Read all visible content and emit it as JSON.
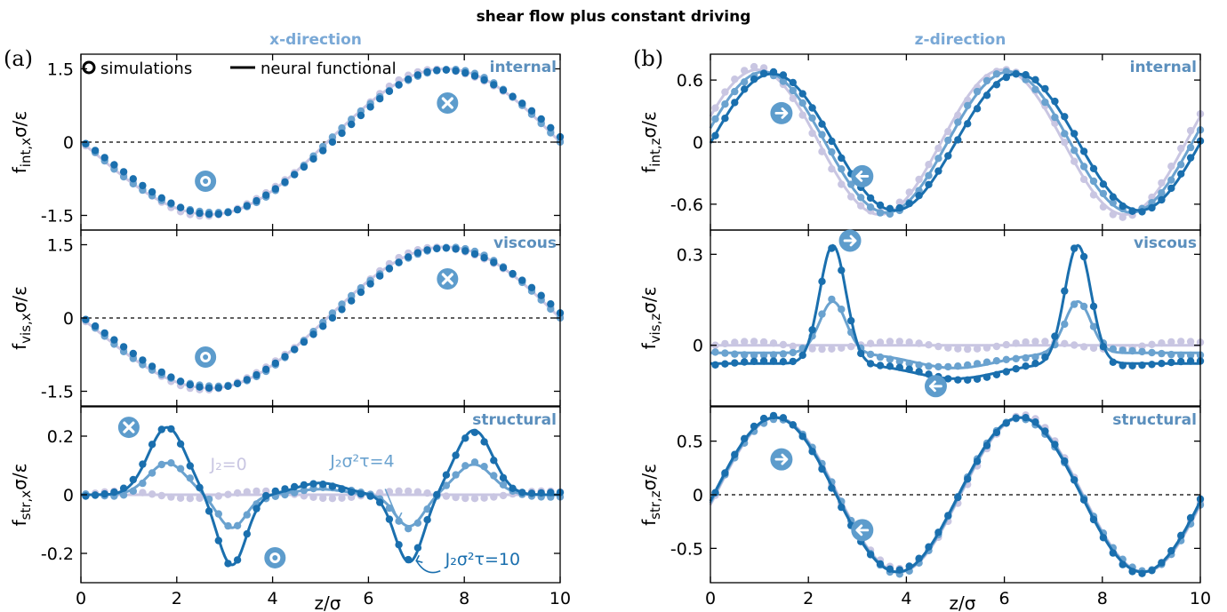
{
  "figure": {
    "title": "shear flow plus constant driving",
    "columns": [
      {
        "panel": "(a)",
        "heading": "x-direction"
      },
      {
        "panel": "(b)",
        "heading": "z-direction"
      }
    ],
    "xlabel": "z/σ",
    "legend": {
      "simulations": "simulations",
      "functional": "neural functional"
    },
    "annotations": {
      "j0": "J₂=0",
      "j4": "J₂σ²τ=4",
      "j10": "J₂σ²τ=10"
    }
  },
  "colors": {
    "j0": "#c9c6e2",
    "j4": "#6aa2cf",
    "j10": "#1a6fae",
    "icon": "#5d9ccc",
    "row_label": "#5b8fbd",
    "heading": "#79a8d6"
  },
  "chart_data": [
    {
      "id": "a1",
      "type": "line",
      "row_label": "internal",
      "ylabel": "f_int,x σ/ε",
      "ylabel_main": "f",
      "ylabel_sub": "int,x",
      "ylabel_tail": "σ/ε",
      "xlim": [
        0,
        10
      ],
      "ylim": [
        -1.8,
        1.8
      ],
      "yticks": [
        -1.5,
        0,
        1.5
      ],
      "ytick_labels": [
        "-1.5",
        "0",
        "1.5"
      ],
      "xticks": [
        0,
        2,
        4,
        6,
        8,
        10
      ],
      "xtick_labels": [],
      "zero_line": true,
      "icons": [
        {
          "kind": "out",
          "x": 2.6,
          "y": -0.8
        },
        {
          "kind": "in",
          "x": 7.65,
          "y": 0.8
        }
      ],
      "legend": true
    },
    {
      "id": "a2",
      "type": "line",
      "row_label": "viscous",
      "ylabel": "f_vis,x σ/ε",
      "ylabel_main": "f",
      "ylabel_sub": "vis,x",
      "ylabel_tail": "σ/ε",
      "xlim": [
        0,
        10
      ],
      "ylim": [
        -1.8,
        1.8
      ],
      "yticks": [
        -1.5,
        0,
        1.5
      ],
      "ytick_labels": [
        "-1.5",
        "0",
        "1.5"
      ],
      "xticks": [
        0,
        2,
        4,
        6,
        8,
        10
      ],
      "xtick_labels": [],
      "zero_line": true,
      "icons": [
        {
          "kind": "out",
          "x": 2.6,
          "y": -0.8
        },
        {
          "kind": "in",
          "x": 7.65,
          "y": 0.8
        }
      ]
    },
    {
      "id": "a3",
      "type": "line",
      "row_label": "structural",
      "ylabel": "f_str,x σ/ε",
      "ylabel_main": "f",
      "ylabel_sub": "str,x",
      "ylabel_tail": "σ/ε",
      "xlim": [
        0,
        10
      ],
      "ylim": [
        -0.3,
        0.3
      ],
      "yticks": [
        -0.2,
        0,
        0.2
      ],
      "ytick_labels": [
        "-0.2",
        "0",
        "0.2"
      ],
      "xticks": [
        0,
        2,
        4,
        6,
        8,
        10
      ],
      "xtick_labels": [
        "0",
        "2",
        "4",
        "6",
        "8",
        "10"
      ],
      "zero_line": false,
      "icons": [
        {
          "kind": "in",
          "x": 1.0,
          "y": 0.23
        },
        {
          "kind": "out",
          "x": 4.05,
          "y": -0.215
        }
      ]
    },
    {
      "id": "b1",
      "type": "line",
      "row_label": "internal",
      "ylabel": "f_int,z σ/ε",
      "ylabel_main": "f",
      "ylabel_sub": "int,z",
      "ylabel_tail": "σ/ε",
      "xlim": [
        0,
        10
      ],
      "ylim": [
        -0.85,
        0.85
      ],
      "yticks": [
        -0.6,
        0,
        0.6
      ],
      "ytick_labels": [
        "-0.6",
        "0",
        "0.6"
      ],
      "xticks": [
        0,
        2,
        4,
        6,
        8,
        10
      ],
      "xtick_labels": [],
      "zero_line": true,
      "icons": [
        {
          "kind": "right",
          "x": 1.45,
          "y": 0.28
        },
        {
          "kind": "left",
          "x": 3.1,
          "y": -0.33
        }
      ]
    },
    {
      "id": "b2",
      "type": "line",
      "row_label": "viscous",
      "ylabel": "f_vis,z σ/ε",
      "ylabel_main": "f",
      "ylabel_sub": "vis,z",
      "ylabel_tail": "σ/ε",
      "xlim": [
        0,
        10
      ],
      "ylim": [
        -0.2,
        0.38
      ],
      "yticks": [
        0,
        0.3
      ],
      "ytick_labels": [
        "0",
        "0.3"
      ],
      "xticks": [
        0,
        2,
        4,
        6,
        8,
        10
      ],
      "xtick_labels": [],
      "zero_line": false,
      "icons": [
        {
          "kind": "right",
          "x": 2.85,
          "y": 0.345
        },
        {
          "kind": "left",
          "x": 4.6,
          "y": -0.135
        }
      ]
    },
    {
      "id": "b3",
      "type": "line",
      "row_label": "structural",
      "ylabel": "f_str,z σ/ε",
      "ylabel_main": "f",
      "ylabel_sub": "str,z",
      "ylabel_tail": "σ/ε",
      "xlim": [
        0,
        10
      ],
      "ylim": [
        -0.82,
        0.82
      ],
      "yticks": [
        -0.5,
        0,
        0.5
      ],
      "ytick_labels": [
        "-0.5",
        "0",
        "0.5"
      ],
      "xticks": [
        0,
        2,
        4,
        6,
        8,
        10
      ],
      "xtick_labels": [
        "0",
        "2",
        "4",
        "6",
        "8",
        "10"
      ],
      "zero_line": true,
      "icons": [
        {
          "kind": "right",
          "x": 1.45,
          "y": 0.33
        },
        {
          "kind": "left",
          "x": 3.1,
          "y": -0.33
        }
      ]
    }
  ]
}
